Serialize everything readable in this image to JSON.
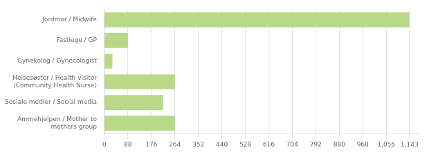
{
  "chart_data": {
    "type": "bar",
    "orientation": "horizontal",
    "categories": [
      "Jordmor / Midwife",
      "Fastlege / GP",
      "Gynekolog / Gynecologist",
      "Helsesøster / Health visitor\n(Community Health Nurse)",
      "Sosiale medier / Social media",
      "Ammehjelpen / Mother to\nmothers group"
    ],
    "values": [
      1143,
      88,
      30,
      264,
      220,
      264
    ],
    "color": "#b8d988",
    "xlim": [
      0,
      1180
    ],
    "xticks": [
      0,
      88,
      176,
      264,
      352,
      440,
      528,
      616,
      704,
      792,
      880,
      968,
      {
        "value": 1056,
        "label": "1,056"
      },
      {
        "value": 1143,
        "label": "1,143"
      }
    ],
    "grid": true
  }
}
